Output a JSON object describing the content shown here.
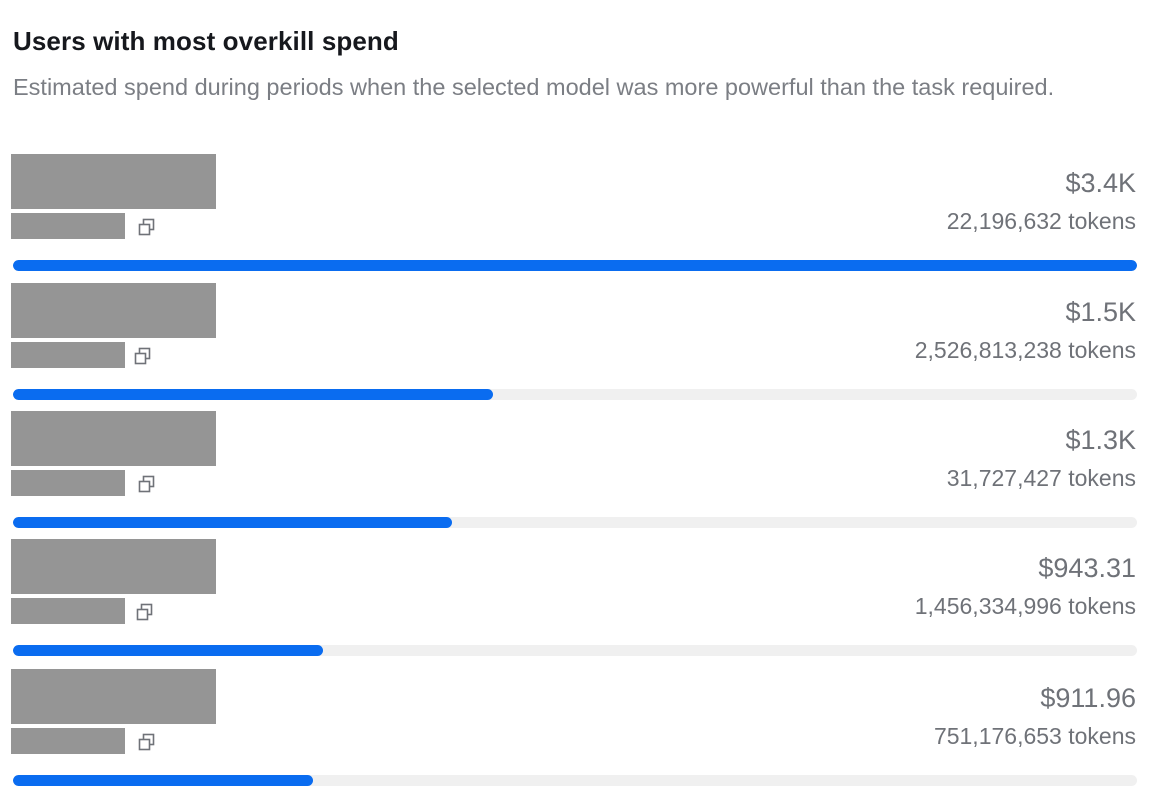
{
  "header": {
    "title": "Users with most overkill spend",
    "subtitle": "Estimated spend during periods when the selected model was more powerful than the task required."
  },
  "colors": {
    "bar_fill": "#0a6cf0",
    "bar_track": "#f0f0f0",
    "redacted": "#959595",
    "muted_text": "#6f7278"
  },
  "users": [
    {
      "spend": "$3.4K",
      "tokens": "22,196,632 tokens",
      "share": 1.0,
      "icon": "copy-icon"
    },
    {
      "spend": "$1.5K",
      "tokens": "2,526,813,238 tokens",
      "share": 0.427,
      "icon": "copy-icon"
    },
    {
      "spend": "$1.3K",
      "tokens": "31,727,427 tokens",
      "share": 0.391,
      "icon": "copy-icon"
    },
    {
      "spend": "$943.31",
      "tokens": "1,456,334,996 tokens",
      "share": 0.276,
      "icon": "copy-icon"
    },
    {
      "spend": "$911.96",
      "tokens": "751,176,653 tokens",
      "share": 0.267,
      "icon": "copy-icon"
    }
  ]
}
